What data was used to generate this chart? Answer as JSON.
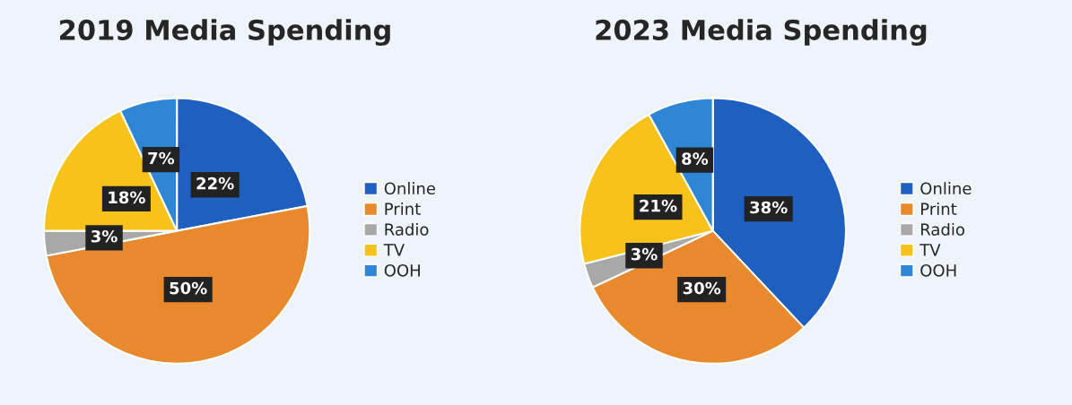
{
  "chart_data": [
    {
      "type": "pie",
      "title": "2019 Media Spending",
      "categories": [
        "Online",
        "Print",
        "Radio",
        "TV",
        "OOH"
      ],
      "values": [
        22,
        50,
        3,
        18,
        7
      ],
      "value_labels": [
        "22%",
        "50%",
        "3%",
        "18%",
        "7%"
      ],
      "colors": [
        "#1f5fc0",
        "#e8892e",
        "#a8a8a8",
        "#f7c21a",
        "#2e86d4"
      ],
      "legend": "right"
    },
    {
      "type": "pie",
      "title": "2023 Media Spending",
      "categories": [
        "Online",
        "Print",
        "Radio",
        "TV",
        "OOH"
      ],
      "values": [
        38,
        30,
        3,
        21,
        8
      ],
      "value_labels": [
        "38%",
        "30%",
        "3%",
        "21%",
        "8%"
      ],
      "colors": [
        "#1f5fc0",
        "#e8892e",
        "#a8a8a8",
        "#f7c21a",
        "#2e86d4"
      ],
      "legend": "right"
    }
  ]
}
